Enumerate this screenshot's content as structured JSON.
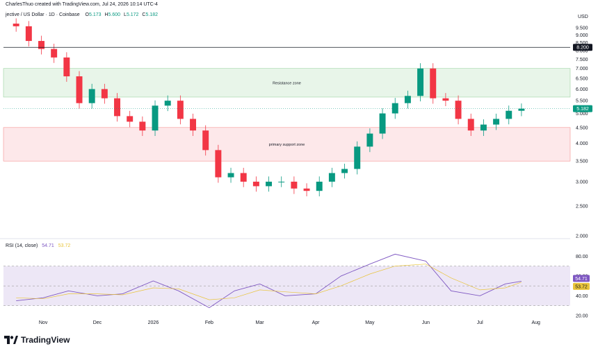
{
  "header": {
    "credit": "CharlesThuo created with TradingView.com, Jul 24, 2026 10:14 UTC-4",
    "symbol": "jective / US Dollar · 1D · Coinbase",
    "ohlc": [
      {
        "label": "O",
        "value": "5.173"
      },
      {
        "label": "H",
        "value": "5.600"
      },
      {
        "label": "L",
        "value": "5.172"
      },
      {
        "label": "C",
        "value": "5.182"
      }
    ]
  },
  "currency": "USD",
  "rsi_legend": {
    "label": "RSI (14, close)",
    "rsi_value": "54.71",
    "ma_value": "53.72"
  },
  "branding": "TradingView",
  "chart_data": [
    {
      "type": "candlestick",
      "pane": "price",
      "x_axis": {
        "type": "date",
        "tick_labels": [
          "Nov",
          "Dec",
          "2026",
          "Feb",
          "Mar",
          "Apr",
          "May",
          "Jun",
          "Jul",
          "Aug"
        ]
      },
      "y_axis": {
        "scale": "log",
        "range": [
          2.0,
          10.0
        ],
        "tick_labels": [
          "2.000",
          "2.500",
          "3.000",
          "3.500",
          "4.000",
          "4.500",
          "5.000",
          "5.500",
          "6.000",
          "6.500",
          "7.000",
          "7.500",
          "8.000",
          "8.500",
          "9.000",
          "9.500"
        ]
      },
      "last_price": {
        "value": 5.182,
        "label": "5.182",
        "color": "#089981"
      },
      "horizontal_line": {
        "value": 8.2,
        "label": "8.200",
        "color": "#131722"
      },
      "zones": [
        {
          "label": "Resistance zone",
          "from": 5.65,
          "to": 7.0,
          "color": "#e8f5e9"
        },
        {
          "label": "primary support zone",
          "from": 3.5,
          "to": 4.5,
          "color": "#fde8ea"
        }
      ],
      "series": [
        {
          "name": "Close",
          "x": [
            "2025-10-17",
            "2025-10-24",
            "2025-10-31",
            "2025-11-07",
            "2025-11-14",
            "2025-11-21",
            "2025-11-28",
            "2025-12-05",
            "2025-12-12",
            "2025-12-19",
            "2025-12-26",
            "2026-01-02",
            "2026-01-09",
            "2026-01-16",
            "2026-01-23",
            "2026-01-30",
            "2026-02-06",
            "2026-02-13",
            "2026-02-20",
            "2026-02-27",
            "2026-03-06",
            "2026-03-13",
            "2026-03-20",
            "2026-03-27",
            "2026-04-03",
            "2026-04-10",
            "2026-04-17",
            "2026-04-24",
            "2026-05-01",
            "2026-05-08",
            "2026-05-15",
            "2026-05-22",
            "2026-05-29",
            "2026-06-05",
            "2026-06-12",
            "2026-06-19",
            "2026-06-26",
            "2026-07-03",
            "2026-07-10",
            "2026-07-17",
            "2026-07-24"
          ],
          "values": [
            9.6,
            8.6,
            8.1,
            7.6,
            6.6,
            5.4,
            6.0,
            5.6,
            4.9,
            4.7,
            4.4,
            5.3,
            5.5,
            4.8,
            4.4,
            3.8,
            3.1,
            3.2,
            3.0,
            2.9,
            3.0,
            3.0,
            2.85,
            2.8,
            3.0,
            3.2,
            3.3,
            3.9,
            4.3,
            5.0,
            5.4,
            5.7,
            7.0,
            5.6,
            5.5,
            4.8,
            4.4,
            4.6,
            4.8,
            5.1,
            5.182
          ],
          "color": "#089981"
        }
      ]
    },
    {
      "type": "line",
      "pane": "rsi",
      "y_axis": {
        "range": [
          20,
          90
        ],
        "tick_labels": [
          "20.00",
          "40.00",
          "60.00",
          "80.00"
        ]
      },
      "bands": {
        "upper": 70,
        "middle": 50,
        "lower": 30,
        "fill": "#ede7f6"
      },
      "series": [
        {
          "name": "RSI (14, close)",
          "color": "#7e57c2",
          "x": [
            "2025-10-17",
            "2025-11-01",
            "2025-11-15",
            "2025-12-01",
            "2025-12-15",
            "2026-01-01",
            "2026-01-15",
            "2026-02-01",
            "2026-02-15",
            "2026-03-01",
            "2026-03-15",
            "2026-04-01",
            "2026-04-15",
            "2026-05-01",
            "2026-05-15",
            "2026-06-01",
            "2026-06-15",
            "2026-07-01",
            "2026-07-15",
            "2026-07-24"
          ],
          "values": [
            35,
            38,
            45,
            40,
            42,
            55,
            45,
            28,
            45,
            52,
            40,
            42,
            60,
            72,
            82,
            75,
            45,
            40,
            52,
            54.71
          ]
        },
        {
          "name": "RSI-based MA",
          "color": "#e9c43a",
          "x": [
            "2025-10-17",
            "2025-11-01",
            "2025-11-15",
            "2025-12-01",
            "2025-12-15",
            "2026-01-01",
            "2026-01-15",
            "2026-02-01",
            "2026-02-15",
            "2026-03-01",
            "2026-03-15",
            "2026-04-01",
            "2026-04-15",
            "2026-05-01",
            "2026-05-15",
            "2026-06-01",
            "2026-06-15",
            "2026-07-01",
            "2026-07-15",
            "2026-07-24"
          ],
          "values": [
            38,
            37,
            42,
            42,
            41,
            48,
            47,
            36,
            38,
            46,
            44,
            42,
            50,
            62,
            70,
            72,
            58,
            46,
            48,
            53.72
          ]
        }
      ],
      "last_values": [
        {
          "label": "54.71",
          "value": 54.71,
          "color": "#7e57c2"
        },
        {
          "label": "53.72",
          "value": 53.72,
          "color": "#e9c43a"
        }
      ]
    }
  ]
}
